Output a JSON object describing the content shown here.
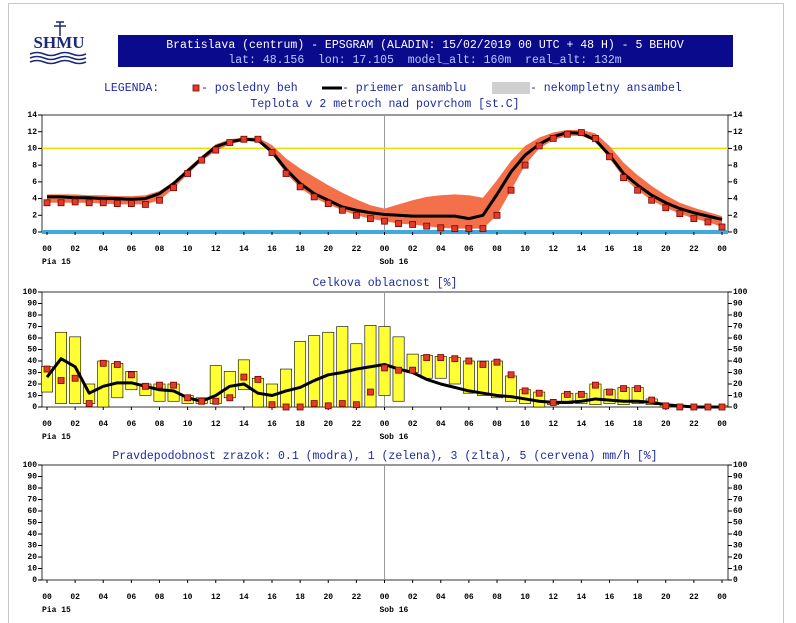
{
  "header": {
    "logo": "SHMU",
    "title": "Bratislava (centrum) - EPSGRAM (ALADIN: 15/02/2019 00 UTC + 48 H) - 5 BEHOV",
    "subtitle": "lat: 48.156  lon: 17.105  model_alt: 160m  real_alt: 132m"
  },
  "legend": {
    "title": "LEGENDA:",
    "items": [
      {
        "label": "- posledny beh",
        "color": "#e03c28",
        "symbol": "square"
      },
      {
        "label": "- priemer ansamblu",
        "color": "#000000",
        "symbol": "line"
      },
      {
        "label": "- nekompletny ansambel",
        "color": "#d0d0d0",
        "symbol": "box"
      }
    ]
  },
  "chart_data": [
    {
      "type": "line",
      "title": "Teplota v 2 metroch nad povrchom [st.C]",
      "xlim": [
        0,
        48
      ],
      "ylim": [
        0,
        14
      ],
      "yticks": [
        0,
        2,
        4,
        6,
        8,
        10,
        12,
        14
      ],
      "xticks": [
        {
          "value": 0,
          "label": "00"
        },
        {
          "value": 2,
          "label": "02"
        },
        {
          "value": 4,
          "label": "04"
        },
        {
          "value": 6,
          "label": "06"
        },
        {
          "value": 8,
          "label": "08"
        },
        {
          "value": 10,
          "label": "10"
        },
        {
          "value": 12,
          "label": "12"
        },
        {
          "value": 14,
          "label": "14"
        },
        {
          "value": 16,
          "label": "16"
        },
        {
          "value": 18,
          "label": "18"
        },
        {
          "value": 20,
          "label": "20"
        },
        {
          "value": 22,
          "label": "22"
        },
        {
          "value": 24,
          "label": "00"
        },
        {
          "value": 26,
          "label": "02"
        },
        {
          "value": 28,
          "label": "04"
        },
        {
          "value": 30,
          "label": "06"
        },
        {
          "value": 32,
          "label": "08"
        },
        {
          "value": 34,
          "label": "10"
        },
        {
          "value": 36,
          "label": "12"
        },
        {
          "value": 38,
          "label": "14"
        },
        {
          "value": 40,
          "label": "16"
        },
        {
          "value": 42,
          "label": "18"
        },
        {
          "value": 44,
          "label": "20"
        },
        {
          "value": 46,
          "label": "22"
        },
        {
          "value": 48,
          "label": "00"
        }
      ],
      "day_labels": [
        {
          "value": 0,
          "label": "Pia 15"
        },
        {
          "value": 24,
          "label": "Sob 16"
        }
      ],
      "ref_lines": [
        {
          "value": 10,
          "color": "#e8dc00"
        },
        {
          "value": 0,
          "color": "#3fa9e0"
        }
      ],
      "x": [
        0,
        1,
        2,
        3,
        4,
        5,
        6,
        7,
        8,
        9,
        10,
        11,
        12,
        13,
        14,
        15,
        16,
        17,
        18,
        19,
        20,
        21,
        22,
        23,
        24,
        25,
        26,
        27,
        28,
        29,
        30,
        31,
        32,
        33,
        34,
        35,
        36,
        37,
        38,
        39,
        40,
        41,
        42,
        43,
        44,
        45,
        46,
        47,
        48
      ],
      "series": [
        {
          "style": "band",
          "color": "#f4704a",
          "low": [
            3.5,
            3.5,
            3.5,
            3.5,
            3.4,
            3.3,
            3.3,
            3.3,
            3.8,
            5.2,
            6.9,
            8.5,
            9.7,
            10.5,
            10.9,
            10.8,
            9.3,
            7.0,
            5.3,
            4.1,
            3.3,
            2.6,
            2.0,
            1.6,
            1.3,
            1.0,
            0.9,
            0.7,
            0.5,
            0.4,
            0.4,
            0.4,
            2.0,
            5.0,
            8.0,
            10.0,
            11.0,
            11.5,
            11.5,
            10.8,
            8.8,
            6.5,
            5.0,
            3.8,
            2.9,
            2.2,
            1.6,
            1.2,
            0.6
          ],
          "high": [
            4.5,
            4.5,
            4.5,
            4.4,
            4.4,
            4.3,
            4.3,
            4.4,
            4.9,
            6.0,
            7.6,
            9.1,
            10.5,
            11.1,
            11.3,
            11.3,
            10.4,
            8.8,
            7.6,
            6.6,
            5.6,
            4.7,
            3.9,
            3.2,
            2.8,
            3.3,
            3.8,
            4.2,
            4.4,
            4.5,
            4.4,
            4.1,
            6.2,
            8.5,
            10.3,
            11.3,
            11.9,
            12.2,
            12.2,
            11.8,
            10.3,
            8.3,
            6.8,
            5.5,
            4.4,
            3.5,
            2.9,
            2.4,
            1.9
          ]
        },
        {
          "style": "line",
          "color": "#000000",
          "values": [
            4.2,
            4.2,
            4.1,
            4.1,
            4.0,
            4.0,
            3.9,
            4.0,
            4.6,
            5.8,
            7.3,
            8.8,
            10.2,
            10.8,
            11.1,
            11.0,
            9.6,
            7.5,
            5.8,
            4.6,
            3.8,
            3.0,
            2.6,
            2.3,
            2.1,
            2.0,
            1.9,
            1.9,
            1.9,
            1.9,
            1.6,
            2.0,
            4.5,
            7.2,
            9.2,
            10.5,
            11.4,
            11.9,
            11.8,
            11.0,
            9.2,
            7.0,
            5.6,
            4.4,
            3.5,
            2.8,
            2.3,
            1.9,
            1.5
          ]
        },
        {
          "style": "markers",
          "color": "#e03c28",
          "values": [
            3.5,
            3.5,
            3.6,
            3.5,
            3.5,
            3.4,
            3.4,
            3.3,
            3.8,
            5.3,
            7.0,
            8.6,
            9.8,
            10.7,
            11.1,
            11.1,
            9.5,
            7.0,
            5.4,
            4.2,
            3.4,
            2.6,
            2.0,
            1.6,
            1.3,
            1.0,
            0.9,
            0.7,
            0.5,
            0.4,
            0.4,
            0.4,
            2.0,
            5.0,
            8.0,
            10.3,
            11.2,
            11.7,
            11.9,
            11.2,
            9.0,
            6.5,
            5.0,
            3.8,
            2.9,
            2.2,
            1.6,
            1.2,
            0.6
          ]
        }
      ]
    },
    {
      "type": "bar",
      "title": "Celkova oblacnost [%]",
      "xlim": [
        0,
        48
      ],
      "ylim": [
        0,
        100
      ],
      "yticks": [
        0,
        10,
        20,
        30,
        40,
        50,
        60,
        70,
        80,
        90,
        100
      ],
      "xticks": [
        {
          "value": 0,
          "label": "00"
        },
        {
          "value": 2,
          "label": "02"
        },
        {
          "value": 4,
          "label": "04"
        },
        {
          "value": 6,
          "label": "06"
        },
        {
          "value": 8,
          "label": "08"
        },
        {
          "value": 10,
          "label": "10"
        },
        {
          "value": 12,
          "label": "12"
        },
        {
          "value": 14,
          "label": "14"
        },
        {
          "value": 16,
          "label": "16"
        },
        {
          "value": 18,
          "label": "18"
        },
        {
          "value": 20,
          "label": "20"
        },
        {
          "value": 22,
          "label": "22"
        },
        {
          "value": 24,
          "label": "00"
        },
        {
          "value": 26,
          "label": "02"
        },
        {
          "value": 28,
          "label": "04"
        },
        {
          "value": 30,
          "label": "06"
        },
        {
          "value": 32,
          "label": "08"
        },
        {
          "value": 34,
          "label": "10"
        },
        {
          "value": 36,
          "label": "12"
        },
        {
          "value": 38,
          "label": "14"
        },
        {
          "value": 40,
          "label": "16"
        },
        {
          "value": 42,
          "label": "18"
        },
        {
          "value": 44,
          "label": "20"
        },
        {
          "value": 46,
          "label": "22"
        },
        {
          "value": 48,
          "label": "00"
        }
      ],
      "day_labels": [
        {
          "value": 0,
          "label": "Pia 15"
        },
        {
          "value": 24,
          "label": "Sob 16"
        }
      ],
      "x": [
        0,
        1,
        2,
        3,
        4,
        5,
        6,
        7,
        8,
        9,
        10,
        11,
        12,
        13,
        14,
        15,
        16,
        17,
        18,
        19,
        20,
        21,
        22,
        23,
        24,
        25,
        26,
        27,
        28,
        29,
        30,
        31,
        32,
        33,
        34,
        35,
        36,
        37,
        38,
        39,
        40,
        41,
        42,
        43,
        44,
        45,
        46,
        47,
        48
      ],
      "series": [
        {
          "style": "boxes",
          "color": "#ffff33",
          "low": [
            13,
            3,
            3,
            3,
            0,
            8,
            15,
            10,
            5,
            5,
            3,
            3,
            3,
            8,
            15,
            0,
            0,
            0,
            0,
            0,
            0,
            0,
            0,
            0,
            10,
            5,
            30,
            25,
            25,
            20,
            12,
            10,
            8,
            5,
            3,
            0,
            2,
            3,
            3,
            2,
            3,
            2,
            3,
            2,
            0,
            0,
            0,
            0,
            0
          ],
          "high": [
            35,
            65,
            61,
            20,
            40,
            38,
            31,
            20,
            20,
            20,
            10,
            8,
            36,
            31,
            41,
            25,
            20,
            33,
            57,
            62,
            65,
            70,
            55,
            71,
            70,
            61,
            46,
            45,
            44,
            43,
            40,
            40,
            40,
            27,
            15,
            13,
            5,
            12,
            12,
            20,
            15,
            17,
            17,
            7,
            2,
            1,
            1,
            1,
            1
          ]
        },
        {
          "style": "line",
          "color": "#000000",
          "values": [
            26,
            42,
            35,
            12,
            18,
            21,
            21,
            18,
            15,
            14,
            8,
            5,
            10,
            18,
            20,
            12,
            10,
            14,
            17,
            23,
            28,
            30,
            33,
            35,
            37,
            33,
            30,
            24,
            20,
            17,
            14,
            12,
            10,
            9,
            7,
            5,
            4,
            4,
            5,
            7,
            6,
            5,
            5,
            4,
            2,
            1,
            0,
            0,
            0
          ]
        },
        {
          "style": "markers",
          "color": "#e03c28",
          "values": [
            33,
            23,
            25,
            3,
            38,
            37,
            28,
            18,
            19,
            19,
            8,
            5,
            5,
            8,
            26,
            24,
            2,
            0,
            0,
            3,
            1,
            3,
            2,
            13,
            34,
            32,
            32,
            43,
            43,
            42,
            40,
            37,
            39,
            28,
            14,
            12,
            4,
            11,
            11,
            19,
            13,
            16,
            16,
            6,
            1,
            0,
            0,
            0,
            0
          ]
        }
      ]
    },
    {
      "type": "line",
      "title": "Pravdepodobnost zrazok: 0.1 (modra), 1 (zelena), 3 (zlta), 5 (cervena) mm/h [%]",
      "xlim": [
        0,
        48
      ],
      "ylim": [
        0,
        100
      ],
      "yticks": [
        0,
        10,
        20,
        30,
        40,
        50,
        60,
        70,
        80,
        90,
        100
      ],
      "xticks": [
        {
          "value": 0,
          "label": "00"
        },
        {
          "value": 2,
          "label": "02"
        },
        {
          "value": 4,
          "label": "04"
        },
        {
          "value": 6,
          "label": "06"
        },
        {
          "value": 8,
          "label": "08"
        },
        {
          "value": 10,
          "label": "10"
        },
        {
          "value": 12,
          "label": "12"
        },
        {
          "value": 14,
          "label": "14"
        },
        {
          "value": 16,
          "label": "16"
        },
        {
          "value": 18,
          "label": "18"
        },
        {
          "value": 20,
          "label": "20"
        },
        {
          "value": 22,
          "label": "22"
        },
        {
          "value": 24,
          "label": "00"
        },
        {
          "value": 26,
          "label": "02"
        },
        {
          "value": 28,
          "label": "04"
        },
        {
          "value": 30,
          "label": "06"
        },
        {
          "value": 32,
          "label": "08"
        },
        {
          "value": 34,
          "label": "10"
        },
        {
          "value": 36,
          "label": "12"
        },
        {
          "value": 38,
          "label": "14"
        },
        {
          "value": 40,
          "label": "16"
        },
        {
          "value": 42,
          "label": "18"
        },
        {
          "value": 44,
          "label": "20"
        },
        {
          "value": 46,
          "label": "22"
        },
        {
          "value": 48,
          "label": "00"
        }
      ],
      "day_labels": [
        {
          "value": 0,
          "label": "Pia 15"
        },
        {
          "value": 24,
          "label": "Sob 16"
        }
      ],
      "series": []
    }
  ]
}
